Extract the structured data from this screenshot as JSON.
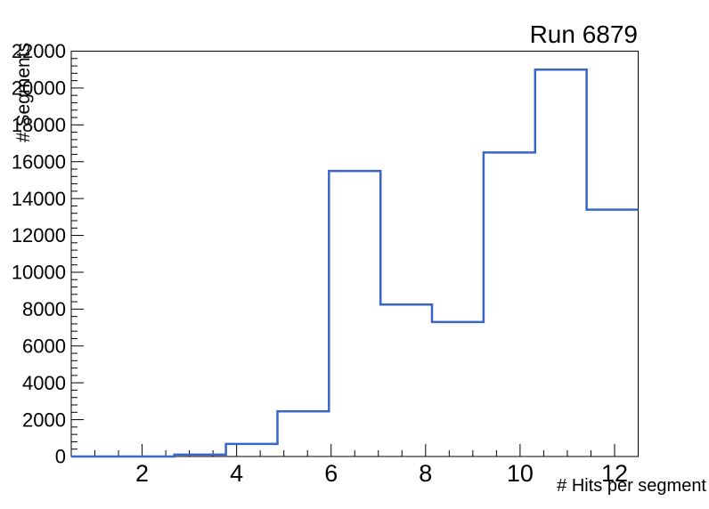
{
  "chart_data": {
    "type": "histogram-step",
    "title": "Run 6879",
    "xlabel": "# Hits per segment",
    "ylabel": "# Segments",
    "x_range": [
      0.5,
      12.5
    ],
    "y_range": [
      0,
      22000
    ],
    "bin_edges": [
      0.5,
      1.5909,
      2.6818,
      3.7727,
      4.8636,
      5.9545,
      7.0455,
      8.1364,
      9.2273,
      10.3182,
      11.4091,
      12.5
    ],
    "counts": [
      0,
      0,
      100,
      680,
      2450,
      15500,
      8250,
      7300,
      16500,
      21000,
      13400
    ],
    "x_major_ticks": [
      2,
      4,
      6,
      8,
      10,
      12
    ],
    "x_tick_labels": [
      "2",
      "4",
      "6",
      "8",
      "10",
      "12"
    ],
    "x_minor_step": 0.5,
    "y_major_step": 2000,
    "y_minor_step": 400,
    "y_tick_labels": [
      "0",
      "2000",
      "4000",
      "6000",
      "8000",
      "10000",
      "12000",
      "14000",
      "16000",
      "18000",
      "20000",
      "22000"
    ],
    "grid": false,
    "legend_position": "none",
    "line_color": "#3866c6",
    "frame_color": "#000000",
    "background_color": "#ffffff"
  }
}
